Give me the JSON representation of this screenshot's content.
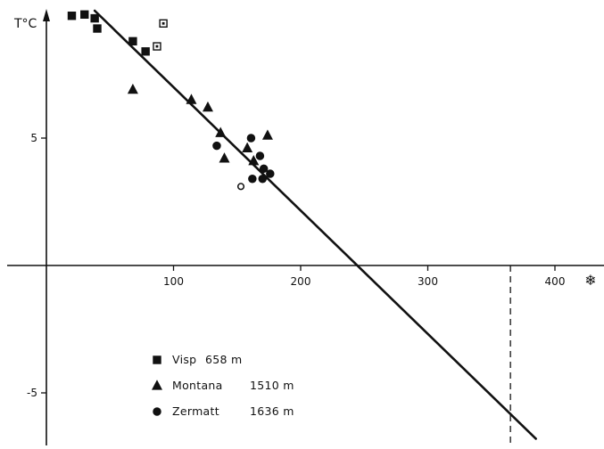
{
  "chart_data": {
    "type": "scatter",
    "ylabel": "T°C",
    "x_unit_symbol": "❄",
    "xlim": [
      -30,
      425
    ],
    "ylim": [
      -7,
      10
    ],
    "x_ticks": [
      100,
      200,
      300,
      400
    ],
    "y_ticks": [
      5,
      -5
    ],
    "grid": false,
    "legend_position": "bottom-left",
    "series": [
      {
        "name": "Visp",
        "altitude": "658 m",
        "marker": "square",
        "points": [
          {
            "x": 20,
            "y": 9.8
          },
          {
            "x": 30,
            "y": 9.85
          },
          {
            "x": 38,
            "y": 9.7
          },
          {
            "x": 40,
            "y": 9.3
          },
          {
            "x": 68,
            "y": 8.8
          },
          {
            "x": 78,
            "y": 8.4
          },
          {
            "x": 87,
            "y": 8.6,
            "open": true
          },
          {
            "x": 92,
            "y": 9.5,
            "open": true
          }
        ]
      },
      {
        "name": "Montana",
        "altitude": "1510 m",
        "marker": "triangle",
        "points": [
          {
            "x": 68,
            "y": 6.9
          },
          {
            "x": 114,
            "y": 6.5
          },
          {
            "x": 127,
            "y": 6.2
          },
          {
            "x": 137,
            "y": 5.2
          },
          {
            "x": 140,
            "y": 4.2
          },
          {
            "x": 158,
            "y": 4.6
          },
          {
            "x": 163,
            "y": 4.1
          },
          {
            "x": 174,
            "y": 5.1
          }
        ]
      },
      {
        "name": "Zermatt",
        "altitude": "1636 m",
        "marker": "circle",
        "points": [
          {
            "x": 134,
            "y": 4.7
          },
          {
            "x": 153,
            "y": 3.1,
            "open": true
          },
          {
            "x": 161,
            "y": 5.0
          },
          {
            "x": 162,
            "y": 3.4
          },
          {
            "x": 168,
            "y": 4.3
          },
          {
            "x": 170,
            "y": 3.4
          },
          {
            "x": 171,
            "y": 3.8
          },
          {
            "x": 176,
            "y": 3.6
          }
        ]
      }
    ],
    "regression_line": {
      "x1": 38,
      "y1": 10,
      "x2": 385,
      "y2": -6.8
    },
    "reference_line": {
      "x": 365,
      "style": "dashed"
    }
  }
}
